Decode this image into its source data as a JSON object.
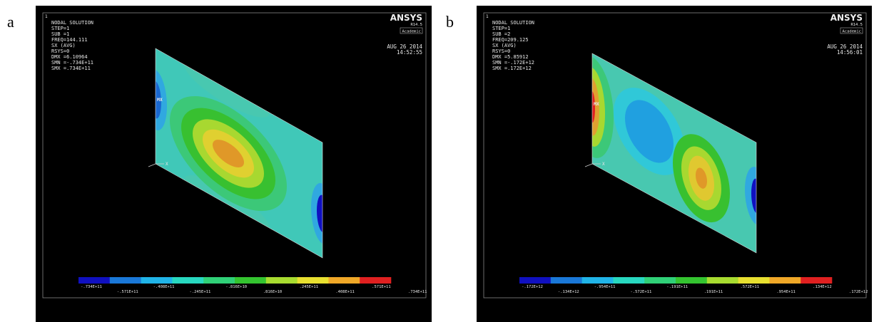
{
  "panels": [
    {
      "label": "a",
      "window_number": "1",
      "logo": "ANSYS",
      "version": "R14.5",
      "license": "Academic",
      "info": [
        "NODAL SOLUTION",
        "STEP=1",
        "SUB =1",
        "FREQ=144.111",
        "SX       (AVG)",
        "RSYS=0",
        "DMX =6.10964",
        "SMN =-.734E+11",
        "SMX =.734E+11"
      ],
      "date": "AUG 26 2014",
      "time": "14:52:55",
      "max_marker": "MX",
      "axis_label": "X",
      "legend": [
        "-.734E+11",
        "-.571E+11",
        "-.408E+11",
        "-.245E+11",
        "-.816E+10",
        ".816E+10",
        ".245E+11",
        ".408E+11",
        ".571E+11",
        ".734E+11"
      ]
    },
    {
      "label": "b",
      "window_number": "1",
      "logo": "ANSYS",
      "version": "R14.5",
      "license": "Academic",
      "info": [
        "NODAL SOLUTION",
        "STEP=1",
        "SUB =2",
        "FREQ=209.125",
        "SX       (AVG)",
        "RSYS=0",
        "DMX =5.85912",
        "SMN =-.172E+12",
        "SMX =.172E+12"
      ],
      "date": "AUG 26 2014",
      "time": "14:56:01",
      "max_marker": "MX",
      "axis_label": "X",
      "legend": [
        "-.172E+12",
        "-.134E+12",
        "-.954E+11",
        "-.572E+11",
        "-.191E+11",
        ".191E+11",
        ".572E+11",
        ".954E+11",
        ".134E+12",
        ".172E+12"
      ]
    }
  ]
}
